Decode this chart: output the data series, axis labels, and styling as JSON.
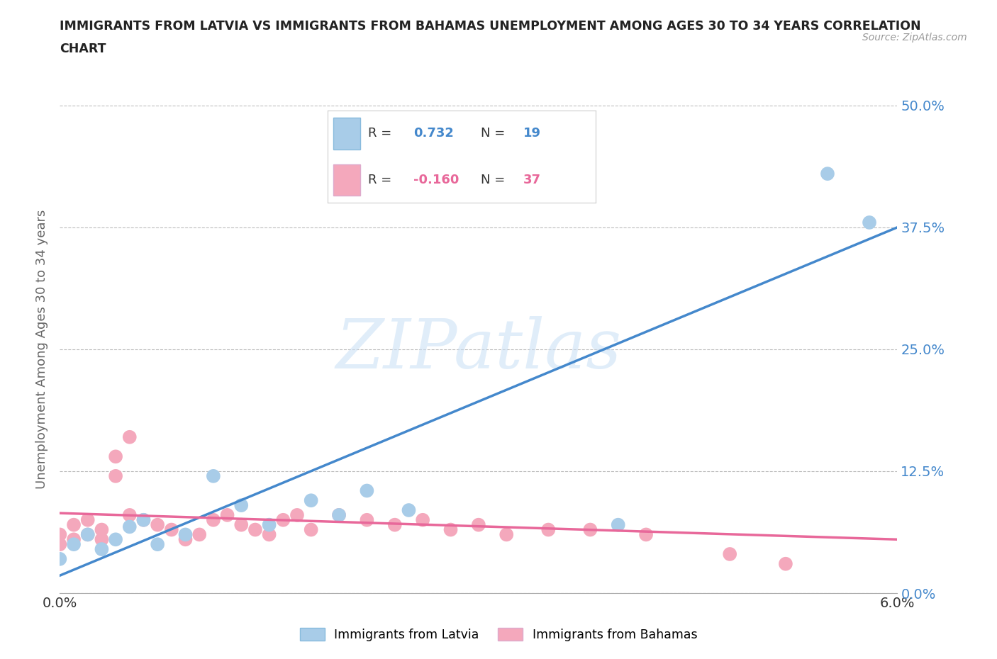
{
  "title_line1": "IMMIGRANTS FROM LATVIA VS IMMIGRANTS FROM BAHAMAS UNEMPLOYMENT AMONG AGES 30 TO 34 YEARS CORRELATION",
  "title_line2": "CHART",
  "source": "Source: ZipAtlas.com",
  "ylabel": "Unemployment Among Ages 30 to 34 years",
  "xlim": [
    0.0,
    0.06
  ],
  "ylim": [
    0.0,
    0.5
  ],
  "xticks": [
    0.0,
    0.01,
    0.02,
    0.03,
    0.04,
    0.05,
    0.06
  ],
  "yticks": [
    0.0,
    0.125,
    0.25,
    0.375,
    0.5
  ],
  "latvia_color": "#a8cce8",
  "bahamas_color": "#f4a8bc",
  "latvia_line_color": "#4488cc",
  "bahamas_line_color": "#e8689a",
  "legend_R_latvia": "0.732",
  "legend_N_latvia": "19",
  "legend_R_bahamas": "-0.160",
  "legend_N_bahamas": "37",
  "latvia_x": [
    0.0,
    0.001,
    0.002,
    0.003,
    0.004,
    0.005,
    0.006,
    0.007,
    0.009,
    0.011,
    0.013,
    0.015,
    0.018,
    0.02,
    0.022,
    0.025,
    0.04,
    0.055,
    0.058
  ],
  "latvia_y": [
    0.035,
    0.05,
    0.06,
    0.045,
    0.055,
    0.068,
    0.075,
    0.05,
    0.06,
    0.12,
    0.09,
    0.07,
    0.095,
    0.08,
    0.105,
    0.085,
    0.07,
    0.43,
    0.38
  ],
  "bahamas_x": [
    0.0,
    0.0,
    0.001,
    0.001,
    0.002,
    0.002,
    0.003,
    0.003,
    0.004,
    0.004,
    0.005,
    0.005,
    0.006,
    0.007,
    0.008,
    0.009,
    0.01,
    0.011,
    0.012,
    0.013,
    0.014,
    0.015,
    0.016,
    0.017,
    0.018,
    0.02,
    0.022,
    0.024,
    0.026,
    0.028,
    0.03,
    0.032,
    0.035,
    0.038,
    0.042,
    0.048,
    0.052
  ],
  "bahamas_y": [
    0.05,
    0.06,
    0.055,
    0.07,
    0.06,
    0.075,
    0.065,
    0.055,
    0.14,
    0.12,
    0.08,
    0.16,
    0.075,
    0.07,
    0.065,
    0.055,
    0.06,
    0.075,
    0.08,
    0.07,
    0.065,
    0.06,
    0.075,
    0.08,
    0.065,
    0.08,
    0.075,
    0.07,
    0.075,
    0.065,
    0.07,
    0.06,
    0.065,
    0.065,
    0.06,
    0.04,
    0.03
  ],
  "latvia_trend_x": [
    0.0,
    0.06
  ],
  "latvia_trend_y": [
    0.018,
    0.375
  ],
  "bahamas_trend_x": [
    0.0,
    0.06
  ],
  "bahamas_trend_y": [
    0.082,
    0.055
  ],
  "watermark_text": "ZIPatlas"
}
